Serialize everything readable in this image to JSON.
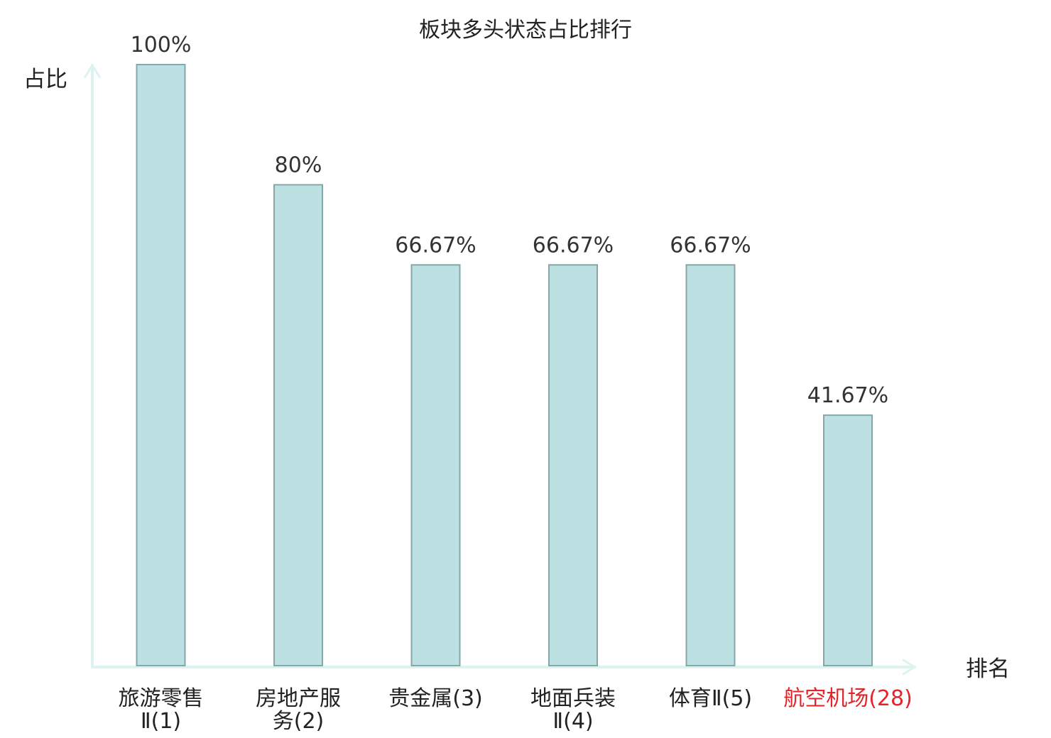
{
  "chart_data": {
    "type": "bar",
    "title": "板块多头状态占比排行",
    "ylabel": "占比",
    "xlabel": "排名",
    "categories": [
      [
        "旅游零售",
        "Ⅱ(1)"
      ],
      [
        "房地产服",
        "务(2)"
      ],
      [
        "贵金属(3)"
      ],
      [
        "地面兵装",
        "Ⅱ(4)"
      ],
      [
        "体育Ⅱ(5)"
      ],
      [
        "航空机场(28)"
      ]
    ],
    "values": [
      100,
      80,
      66.67,
      66.67,
      66.67,
      41.67
    ],
    "value_labels": [
      "100%",
      "80%",
      "66.67%",
      "66.67%",
      "66.67%",
      "41.67%"
    ],
    "ylim": [
      0,
      100
    ],
    "grid": false,
    "highlight_index": 5,
    "colors": {
      "bar_fill": "#bde0e2",
      "bar_stroke": "#86a7a8",
      "axis": "#dcf3ef",
      "label_normal": "#222222",
      "label_highlight": "#e5232a"
    }
  }
}
